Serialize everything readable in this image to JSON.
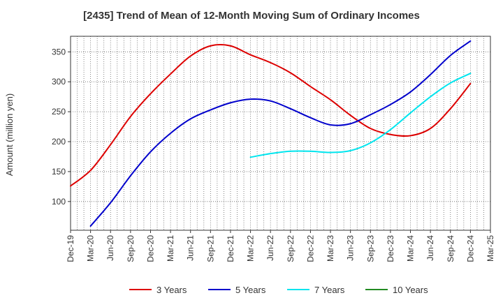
{
  "chart_data": {
    "type": "line",
    "title": "[2435]  Trend of Mean of 12-Month Moving Sum of Ordinary Incomes",
    "xlabel": "",
    "ylabel": "Amount (million yen)",
    "x": [
      "Dec-19",
      "Mar-20",
      "Jun-20",
      "Sep-20",
      "Dec-20",
      "Mar-21",
      "Jun-21",
      "Sep-21",
      "Dec-21",
      "Mar-22",
      "Jun-22",
      "Sep-22",
      "Dec-22",
      "Mar-23",
      "Jun-23",
      "Sep-23",
      "Dec-23",
      "Mar-24",
      "Jun-24",
      "Sep-24",
      "Dec-24",
      "Mar-25"
    ],
    "yticks": [
      100,
      150,
      200,
      250,
      300,
      350
    ],
    "ylim": [
      52,
      376
    ],
    "grid": true,
    "legend_position": "bottom",
    "series": [
      {
        "name": "3 Years",
        "color": "#dd0000",
        "values": [
          126,
          152,
          195,
          242,
          280,
          313,
          343,
          360,
          360,
          345,
          332,
          315,
          292,
          270,
          244,
          222,
          212,
          210,
          222,
          255,
          297,
          null
        ]
      },
      {
        "name": "5 Years",
        "color": "#0000cc",
        "values": [
          null,
          59,
          98,
          143,
          183,
          214,
          238,
          253,
          265,
          271,
          268,
          255,
          240,
          228,
          230,
          245,
          262,
          283,
          312,
          344,
          368,
          null
        ]
      },
      {
        "name": "7 Years",
        "color": "#00e5ee",
        "values": [
          null,
          null,
          null,
          null,
          null,
          null,
          null,
          null,
          null,
          174,
          180,
          184,
          184,
          182,
          185,
          198,
          220,
          248,
          275,
          298,
          314,
          null
        ]
      },
      {
        "name": "10 Years",
        "color": "#228b22",
        "values": [
          null,
          null,
          null,
          null,
          null,
          null,
          null,
          null,
          null,
          null,
          null,
          null,
          null,
          null,
          null,
          null,
          null,
          null,
          null,
          null,
          null,
          null
        ]
      }
    ]
  }
}
